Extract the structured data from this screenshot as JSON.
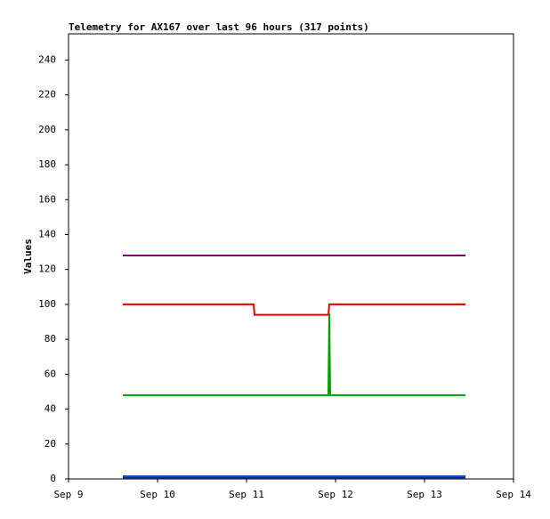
{
  "chart_data": {
    "type": "line",
    "title": "Telemetry for AX167 over last 96 hours (317 points)",
    "y_label": "Values",
    "xlim": [
      9,
      14
    ],
    "xticks": [
      {
        "value": 9,
        "label": "Sep 9"
      },
      {
        "value": 10,
        "label": "Sep 10"
      },
      {
        "value": 11,
        "label": "Sep 11"
      },
      {
        "value": 12,
        "label": "Sep 12"
      },
      {
        "value": 13,
        "label": "Sep 13"
      },
      {
        "value": 14,
        "label": "Sep 14"
      }
    ],
    "ylim": [
      0,
      255
    ],
    "yticks": [
      0,
      20,
      40,
      60,
      80,
      100,
      120,
      140,
      160,
      180,
      200,
      220,
      240
    ],
    "series": [
      {
        "color": "#800080",
        "x": [
          9.61,
          13.46
        ],
        "values": [
          128,
          128
        ]
      },
      {
        "color": "#e00000",
        "x": [
          9.61,
          11.08,
          11.09,
          11.92,
          11.93,
          13.46
        ],
        "values": [
          100,
          100,
          94,
          94,
          100,
          100
        ]
      },
      {
        "color": "#00a000",
        "x": [
          9.61,
          11.92,
          11.93,
          11.94,
          13.46
        ],
        "values": [
          48,
          48,
          95,
          48,
          48
        ]
      },
      {
        "color": "#0050d0",
        "x": [
          9.61,
          13.46
        ],
        "values": [
          1.5,
          1.5
        ]
      },
      {
        "color": "#003070",
        "x": [
          9.61,
          13.46
        ],
        "values": [
          0.5,
          0.5
        ]
      }
    ]
  }
}
